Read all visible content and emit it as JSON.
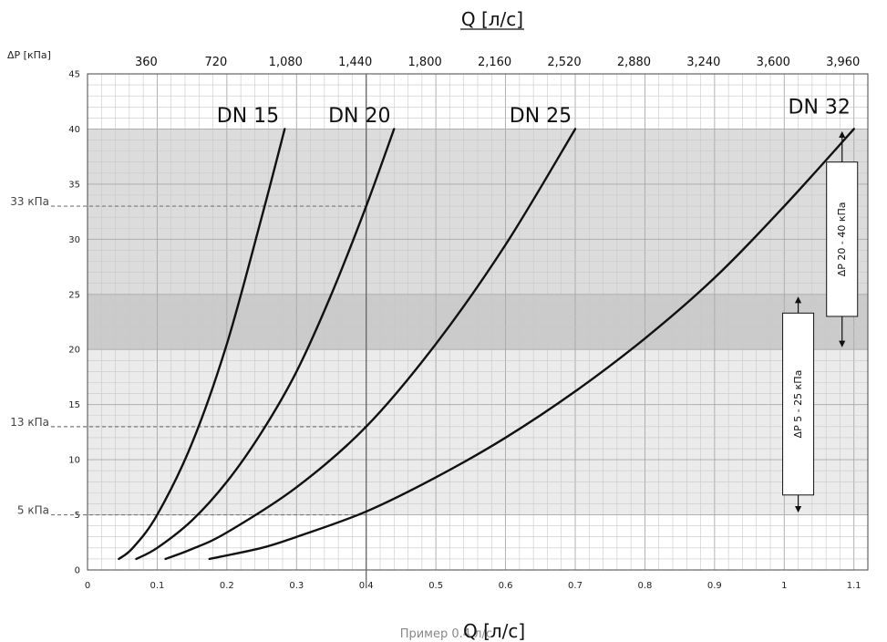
{
  "chart_data": {
    "type": "line",
    "xlabel": "Q [л/с]",
    "x2label": "Q [л/с]",
    "ylabel": "ΔP [кПа]",
    "xlim": [
      0,
      1.12
    ],
    "ylim": [
      0,
      45
    ],
    "x_ticks": [
      0,
      0.1,
      0.2,
      0.3,
      0.4,
      0.5,
      0.6,
      0.7,
      0.8,
      0.9,
      1,
      1.1
    ],
    "x_tick_labels": [
      "0",
      "0.1",
      "0.2",
      "0.3",
      "0.4",
      "0.5",
      "0.6",
      "0.7",
      "0.8",
      "0.9",
      "1",
      "1.1"
    ],
    "y_ticks": [
      0,
      5,
      10,
      15,
      20,
      25,
      30,
      35,
      40,
      45
    ],
    "y_tick_labels": [
      "0",
      "5",
      "10",
      "15",
      "20",
      "25",
      "30",
      "35",
      "40",
      "45"
    ],
    "x2_ticks": [
      0.1,
      0.2,
      0.3,
      0.4,
      0.5,
      0.6,
      0.7,
      0.8,
      0.9,
      1.0,
      1.1
    ],
    "x2_tick_labels": [
      "360",
      "720",
      "1,080",
      "1,440",
      "1,800",
      "2,160",
      "2,520",
      "2,880",
      "3,240",
      "3,600",
      "3,960"
    ],
    "grid": true,
    "bands": [
      {
        "from": 5,
        "to": 20,
        "color": "#ebebeb"
      },
      {
        "from": 20,
        "to": 25,
        "color": "#cbcbcb"
      },
      {
        "from": 25,
        "to": 40,
        "color": "#dcdcdc"
      }
    ],
    "series": [
      {
        "name": "DN 15",
        "label_at": [
          0.275,
          40.6
        ],
        "x": [
          0.045,
          0.065,
          0.1,
          0.15,
          0.2,
          0.25,
          0.283
        ],
        "y": [
          1,
          2,
          5,
          11.5,
          20.5,
          32,
          40
        ]
      },
      {
        "name": "DN 20",
        "label_at": [
          0.435,
          40.6
        ],
        "x": [
          0.07,
          0.1,
          0.15,
          0.2,
          0.25,
          0.3,
          0.35,
          0.4,
          0.44
        ],
        "y": [
          1,
          2,
          4.5,
          8,
          12.5,
          18,
          25,
          33,
          40
        ]
      },
      {
        "name": "DN 25",
        "label_at": [
          0.695,
          40.6
        ],
        "x": [
          0.112,
          0.15,
          0.2,
          0.3,
          0.4,
          0.5,
          0.6,
          0.7
        ],
        "y": [
          1,
          1.9,
          3.4,
          7.5,
          13,
          20.5,
          29.5,
          40
        ]
      },
      {
        "name": "DN 32",
        "label_at": [
          1.095,
          41.4
        ],
        "x": [
          0.175,
          0.25,
          0.3,
          0.4,
          0.5,
          0.6,
          0.7,
          0.8,
          0.9,
          1.0,
          1.1
        ],
        "y": [
          1,
          2,
          3,
          5.3,
          8.4,
          12,
          16.2,
          21,
          26.5,
          33,
          40
        ]
      }
    ],
    "annotations": {
      "h_lines": [
        {
          "y": 33,
          "label": "33 кПа",
          "x_to": 0.4
        },
        {
          "y": 13,
          "label": "13 кПа",
          "x_to": 0.4
        },
        {
          "y": 5,
          "label": "5 кПа",
          "x_to": 0.4
        }
      ],
      "v_line": {
        "x": 0.4
      },
      "ranges": [
        {
          "label": "ΔP 5 - 25 кПа",
          "x": 1.02,
          "from": 5,
          "to": 25,
          "box_from": 6.8,
          "box_to": 23.3
        },
        {
          "label": "ΔP 20 - 40 кПа",
          "x": 1.083,
          "from": 20,
          "to": 40,
          "box_from": 23,
          "box_to": 37
        }
      ],
      "example_prefix": "Пример  0.4 л/с",
      "example_suffix": "Q [л/с]"
    },
    "colors": {
      "line": "#111111",
      "grid_minor": "#c8c8c8",
      "grid_major": "#a8a8a8",
      "dash": "#777777"
    }
  }
}
